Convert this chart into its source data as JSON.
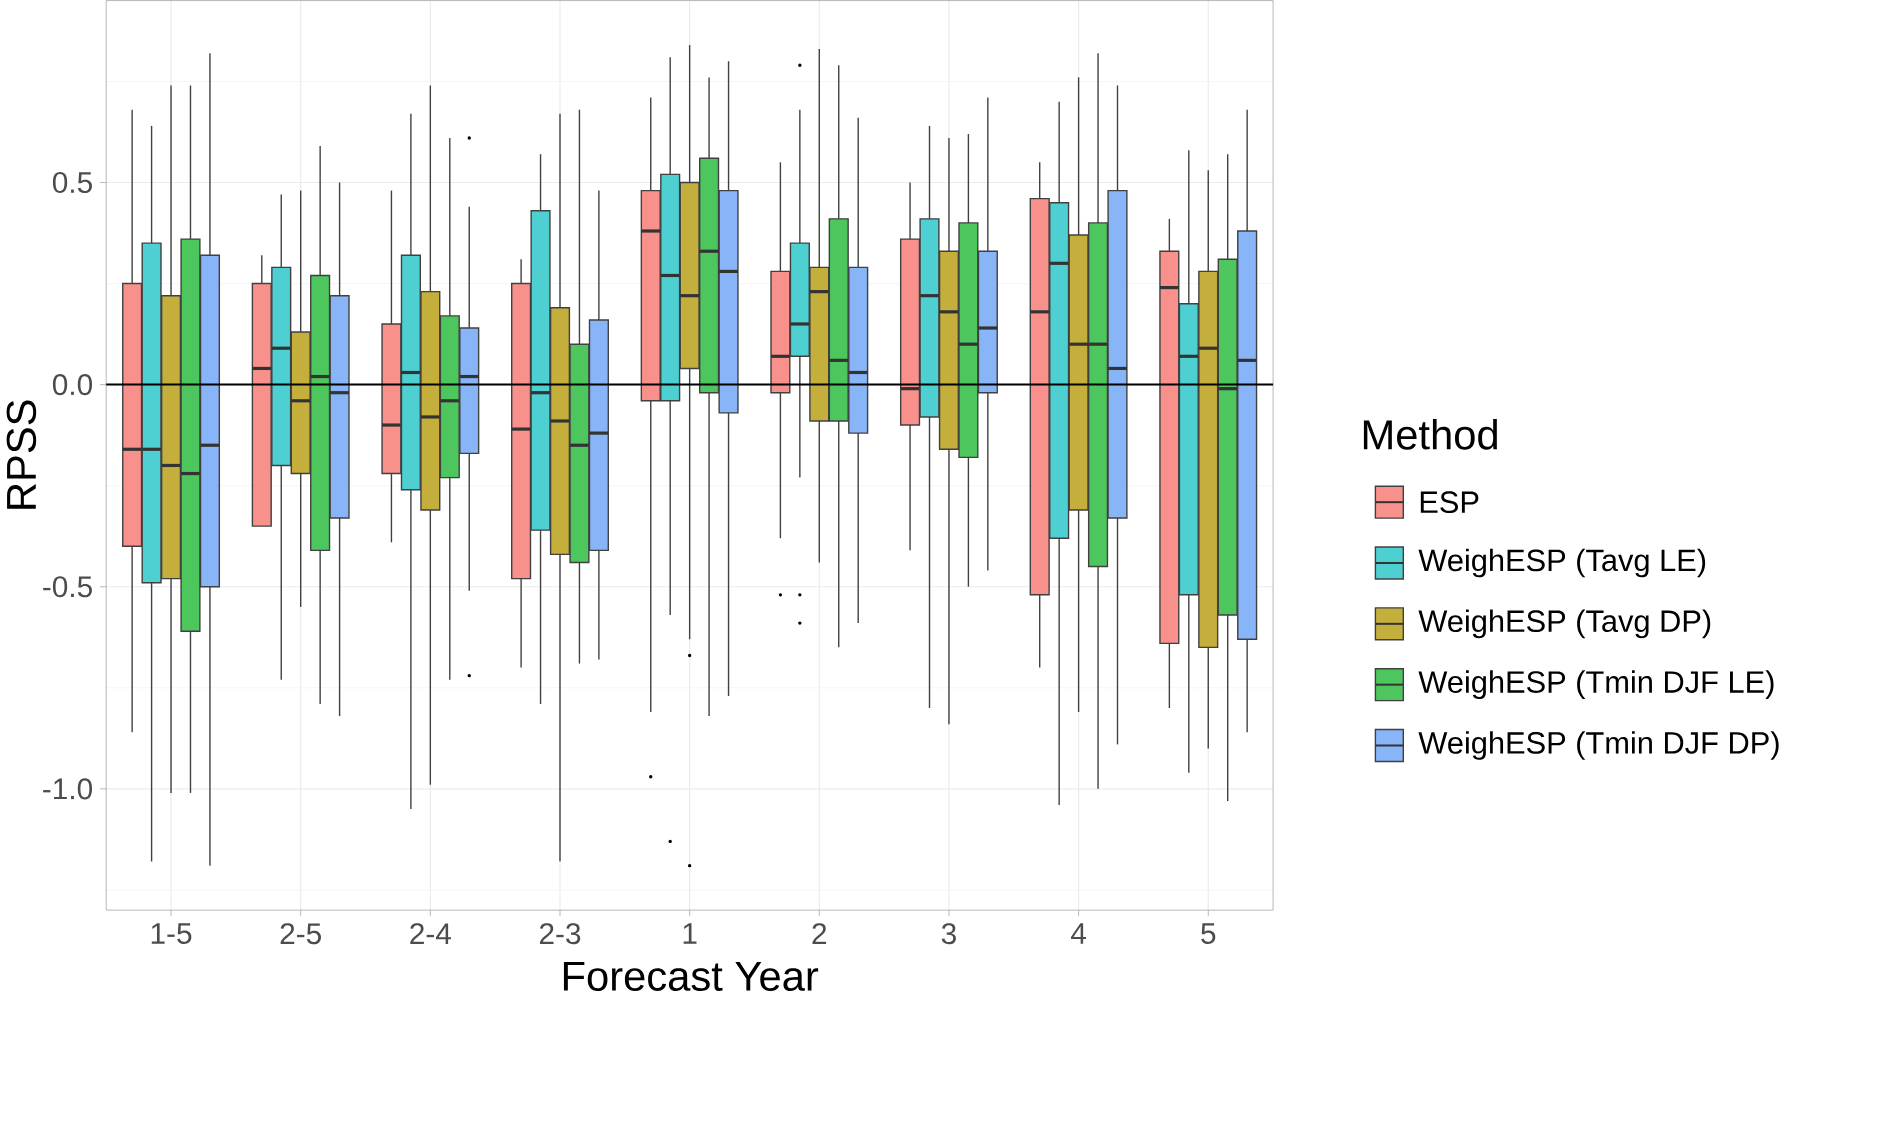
{
  "chart_data": {
    "type": "box",
    "xlabel": "Forecast Year",
    "ylabel": "RPSS",
    "legend_title": "Method",
    "legend": "right",
    "grid": true,
    "categories": [
      "1-5",
      "2-5",
      "2-4",
      "2-3",
      "1",
      "2",
      "3",
      "4",
      "5"
    ],
    "ylim": [
      -1.3,
      0.95
    ],
    "yticks": [
      {
        "value": -1.0,
        "label": "-1.0"
      },
      {
        "value": -0.5,
        "label": "-0.5"
      },
      {
        "value": 0.0,
        "label": "0.0"
      },
      {
        "value": 0.5,
        "label": "0.5"
      }
    ],
    "ref_lines": [
      {
        "axis": "y",
        "value": 0,
        "color": "#000000"
      }
    ],
    "series": [
      {
        "name": "ESP",
        "color": "#F8918C",
        "boxes": [
          {
            "low": -0.86,
            "q1": -0.4,
            "median": -0.16,
            "q3": 0.25,
            "high": 0.68
          },
          {
            "low": -0.35,
            "q1": -0.35,
            "median": 0.04,
            "q3": 0.25,
            "high": 0.32
          },
          {
            "low": -0.39,
            "q1": -0.22,
            "median": -0.1,
            "q3": 0.15,
            "high": 0.48
          },
          {
            "low": -0.7,
            "q1": -0.48,
            "median": -0.11,
            "q3": 0.25,
            "high": 0.31
          },
          {
            "low": -0.81,
            "q1": -0.04,
            "median": 0.38,
            "q3": 0.48,
            "high": 0.71,
            "outliers": [
              -0.97
            ]
          },
          {
            "low": -0.38,
            "q1": -0.02,
            "median": 0.07,
            "q3": 0.28,
            "high": 0.55,
            "outliers": [
              -0.52
            ]
          },
          {
            "low": -0.41,
            "q1": -0.1,
            "median": -0.01,
            "q3": 0.36,
            "high": 0.5
          },
          {
            "low": -0.7,
            "q1": -0.52,
            "median": 0.18,
            "q3": 0.46,
            "high": 0.55
          },
          {
            "low": -0.8,
            "q1": -0.64,
            "median": 0.24,
            "q3": 0.33,
            "high": 0.41
          }
        ]
      },
      {
        "name": "WeighESP (Tavg LE)",
        "color": "#4ECFD2",
        "boxes": [
          {
            "low": -1.18,
            "q1": -0.49,
            "median": -0.16,
            "q3": 0.35,
            "high": 0.64
          },
          {
            "low": -0.73,
            "q1": -0.2,
            "median": 0.09,
            "q3": 0.29,
            "high": 0.47
          },
          {
            "low": -1.05,
            "q1": -0.26,
            "median": 0.03,
            "q3": 0.32,
            "high": 0.67
          },
          {
            "low": -0.79,
            "q1": -0.36,
            "median": -0.02,
            "q3": 0.43,
            "high": 0.57
          },
          {
            "low": -0.57,
            "q1": -0.04,
            "median": 0.27,
            "q3": 0.52,
            "high": 0.81,
            "outliers": [
              -1.13
            ]
          },
          {
            "low": -0.23,
            "q1": 0.07,
            "median": 0.15,
            "q3": 0.35,
            "high": 0.68,
            "outliers": [
              0.79,
              -0.52,
              -0.59
            ]
          },
          {
            "low": -0.8,
            "q1": -0.08,
            "median": 0.22,
            "q3": 0.41,
            "high": 0.64
          },
          {
            "low": -1.04,
            "q1": -0.38,
            "median": 0.3,
            "q3": 0.45,
            "high": 0.7
          },
          {
            "low": -0.96,
            "q1": -0.52,
            "median": 0.07,
            "q3": 0.2,
            "high": 0.58
          }
        ]
      },
      {
        "name": "WeighESP (Tavg DP)",
        "color": "#C4AE3C",
        "boxes": [
          {
            "low": -1.01,
            "q1": -0.48,
            "median": -0.2,
            "q3": 0.22,
            "high": 0.74
          },
          {
            "low": -0.55,
            "q1": -0.22,
            "median": -0.04,
            "q3": 0.13,
            "high": 0.48
          },
          {
            "low": -0.99,
            "q1": -0.31,
            "median": -0.08,
            "q3": 0.23,
            "high": 0.74
          },
          {
            "low": -1.18,
            "q1": -0.42,
            "median": -0.09,
            "q3": 0.19,
            "high": 0.67
          },
          {
            "low": -0.63,
            "q1": 0.04,
            "median": 0.22,
            "q3": 0.5,
            "high": 0.84,
            "outliers": [
              -0.67,
              -1.19
            ]
          },
          {
            "low": -0.44,
            "q1": -0.09,
            "median": 0.23,
            "q3": 0.29,
            "high": 0.83
          },
          {
            "low": -0.84,
            "q1": -0.16,
            "median": 0.18,
            "q3": 0.33,
            "high": 0.61
          },
          {
            "low": -0.81,
            "q1": -0.31,
            "median": 0.1,
            "q3": 0.37,
            "high": 0.76
          },
          {
            "low": -0.9,
            "q1": -0.65,
            "median": 0.09,
            "q3": 0.28,
            "high": 0.53
          }
        ]
      },
      {
        "name": "WeighESP (Tmin DJF LE)",
        "color": "#4DC65E",
        "boxes": [
          {
            "low": -1.01,
            "q1": -0.61,
            "median": -0.22,
            "q3": 0.36,
            "high": 0.74
          },
          {
            "low": -0.79,
            "q1": -0.41,
            "median": 0.02,
            "q3": 0.27,
            "high": 0.59
          },
          {
            "low": -0.73,
            "q1": -0.23,
            "median": -0.04,
            "q3": 0.17,
            "high": 0.61
          },
          {
            "low": -0.69,
            "q1": -0.44,
            "median": -0.15,
            "q3": 0.1,
            "high": 0.68
          },
          {
            "low": -0.82,
            "q1": -0.02,
            "median": 0.33,
            "q3": 0.56,
            "high": 0.76
          },
          {
            "low": -0.65,
            "q1": -0.09,
            "median": 0.06,
            "q3": 0.41,
            "high": 0.79
          },
          {
            "low": -0.5,
            "q1": -0.18,
            "median": 0.1,
            "q3": 0.4,
            "high": 0.62
          },
          {
            "low": -1.0,
            "q1": -0.45,
            "median": 0.1,
            "q3": 0.4,
            "high": 0.82
          },
          {
            "low": -1.03,
            "q1": -0.57,
            "median": -0.01,
            "q3": 0.31,
            "high": 0.57
          }
        ]
      },
      {
        "name": "WeighESP (Tmin DJF DP)",
        "color": "#88B4F8",
        "boxes": [
          {
            "low": -1.19,
            "q1": -0.5,
            "median": -0.15,
            "q3": 0.32,
            "high": 0.82
          },
          {
            "low": -0.82,
            "q1": -0.33,
            "median": -0.02,
            "q3": 0.22,
            "high": 0.5
          },
          {
            "low": -0.51,
            "q1": -0.17,
            "median": 0.02,
            "q3": 0.14,
            "high": 0.44,
            "outliers": [
              0.61,
              -0.72
            ]
          },
          {
            "low": -0.68,
            "q1": -0.41,
            "median": -0.12,
            "q3": 0.16,
            "high": 0.48
          },
          {
            "low": -0.77,
            "q1": -0.07,
            "median": 0.28,
            "q3": 0.48,
            "high": 0.8
          },
          {
            "low": -0.59,
            "q1": -0.12,
            "median": 0.03,
            "q3": 0.29,
            "high": 0.66
          },
          {
            "low": -0.46,
            "q1": -0.02,
            "median": 0.14,
            "q3": 0.33,
            "high": 0.71
          },
          {
            "low": -0.89,
            "q1": -0.33,
            "median": 0.04,
            "q3": 0.48,
            "high": 0.74
          },
          {
            "low": -0.86,
            "q1": -0.63,
            "median": 0.06,
            "q3": 0.38,
            "high": 0.68
          }
        ]
      }
    ]
  }
}
